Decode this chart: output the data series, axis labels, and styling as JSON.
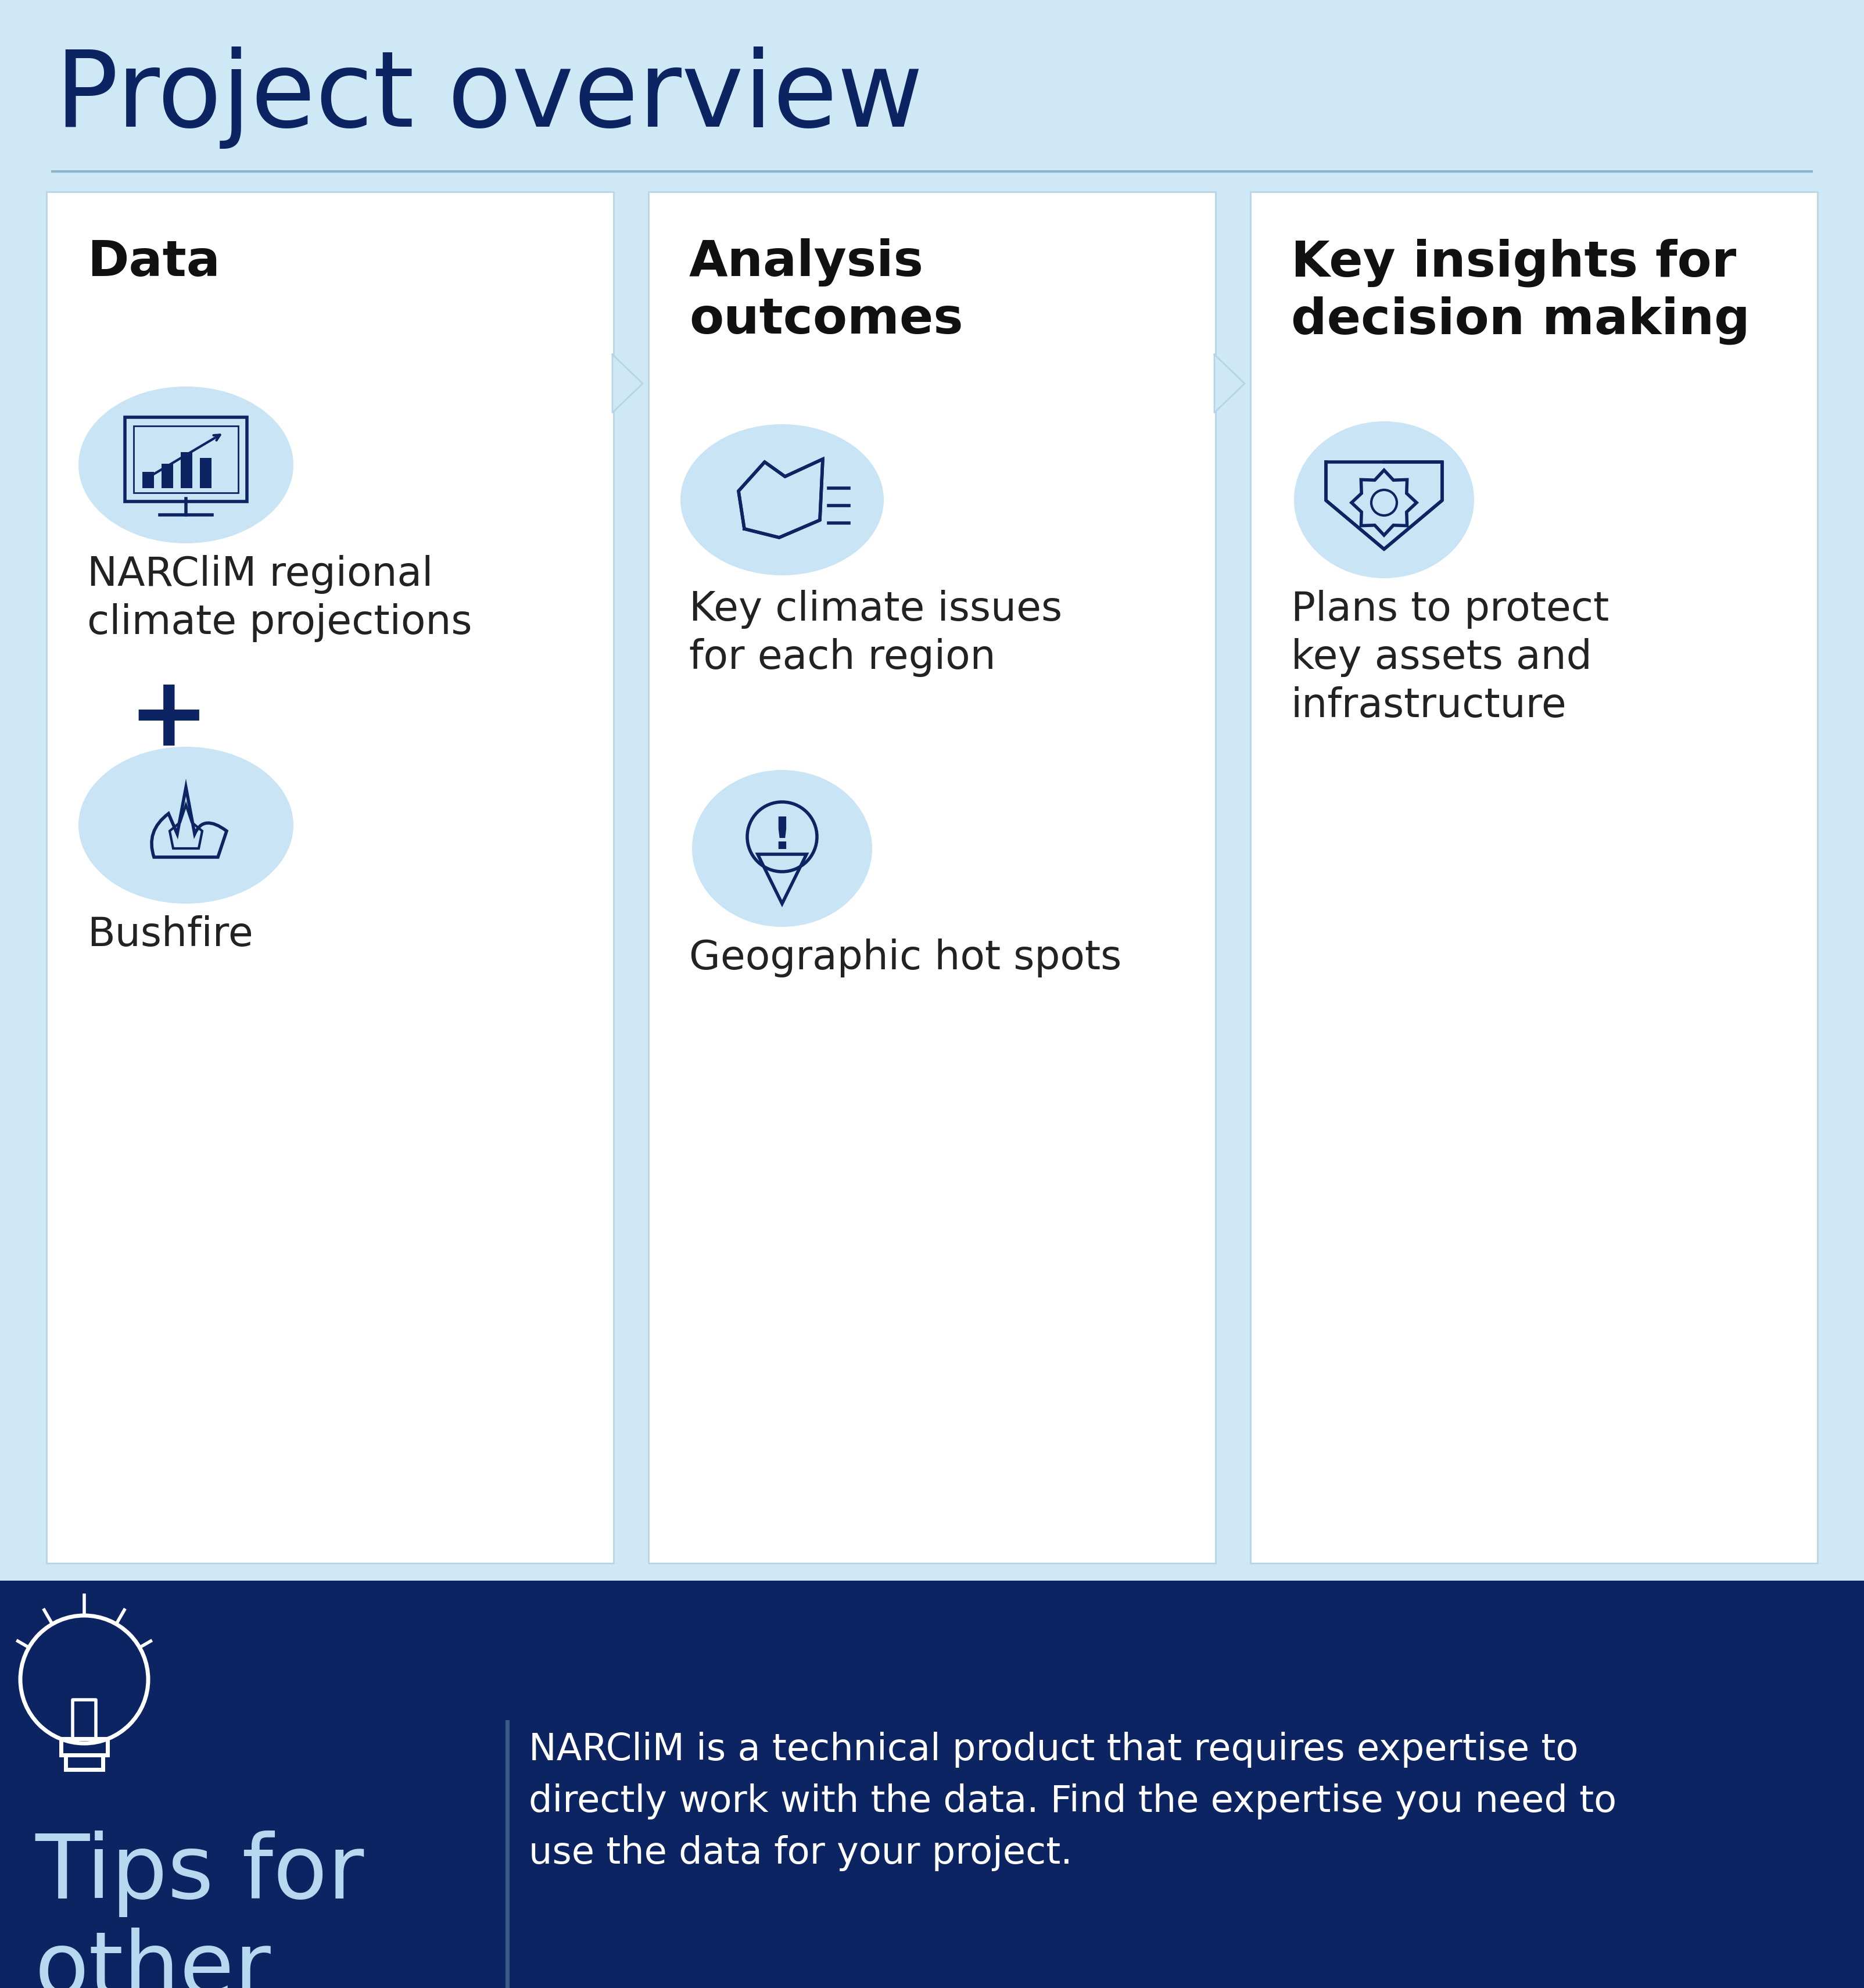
{
  "title": "Project overview",
  "bg_color_top": "#cfe8f5",
  "bg_color_bottom": "#0c2461",
  "title_color": "#0c2461",
  "title_fontsize": 130,
  "divider_color": "#8ab4cc",
  "card_bg": "#ffffff",
  "card_border_color": "#b8d4e8",
  "card1_header": "Data",
  "card2_header": "Analysis\noutcomes",
  "card3_header": "Key insights for\ndecision making",
  "card_header_color": "#111111",
  "card_header_fontsize": 62,
  "item_color": "#222222",
  "icon_circle_color": "#c8e4f5",
  "icon_stroke_color": "#0c2461",
  "card1_items": [
    "NARCliM regional\nclimate projections",
    "Bushfire"
  ],
  "card2_items": [
    "Key climate issues\nfor each region",
    "Geographic hot spots"
  ],
  "card3_items": [
    "Plans to protect\nkey assets and\ninfrastructure"
  ],
  "plus_color": "#0c2461",
  "tips_title": "Tips for\nother\nprojects",
  "tips_title_color": "#b8d8f0",
  "tips_title_fontsize": 110,
  "tips_text": "NARCliM is a technical product that requires expertise to\ndirectly work with the data. Find the expertise you need to\nuse the data for your project.",
  "tips_text_color": "#ffffff",
  "tips_text_fontsize": 46,
  "tips_bar_color": "#3a5a8a",
  "item_fontsize": 50,
  "arrow_color": "#b8d4e8"
}
